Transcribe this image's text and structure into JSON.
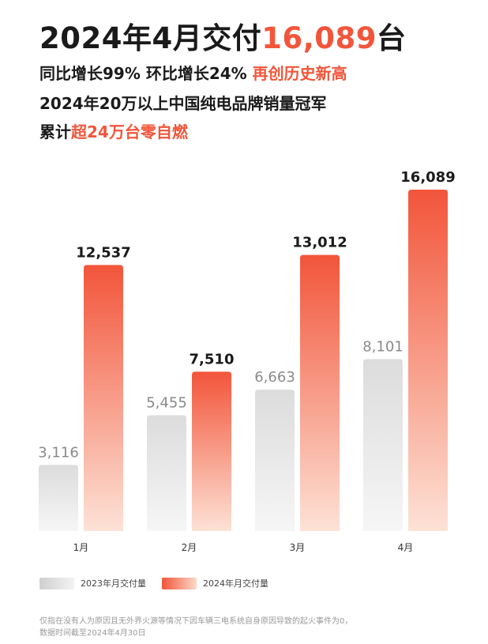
{
  "headline": {
    "prefix": "2024年4月交付",
    "number": "16,089",
    "suffix": "台"
  },
  "subheadlines": [
    {
      "text": "同比增长99% 环比增长24% ",
      "highlight": "再创历史新高"
    },
    {
      "text": "2024年20万以上中国纯电品牌销量冠军",
      "highlight": ""
    },
    {
      "text": "累计",
      "highlight": "超24万台零自燃"
    }
  ],
  "colors": {
    "accent": "#f2553a",
    "bar_2024_top": "#f2553a",
    "bar_2024_bottom": "#fde2d6",
    "bar_2023_top": "#dcdcdc",
    "bar_2023_bottom": "#f6f6f6"
  },
  "chart_data": {
    "type": "bar",
    "categories": [
      "1月",
      "2月",
      "3月",
      "4月"
    ],
    "series": [
      {
        "name": "2023年月交付量",
        "values": [
          3116,
          5455,
          6663,
          8101
        ],
        "labels": [
          "3,116",
          "5,455",
          "6,663",
          "8,101"
        ]
      },
      {
        "name": "2024年月交付量",
        "values": [
          12537,
          7510,
          13012,
          16089
        ],
        "labels": [
          "12,537",
          "7,510",
          "13,012",
          "16,089"
        ]
      }
    ],
    "ylim": [
      0,
      16089
    ],
    "grid": false,
    "legend": "bottom-left"
  },
  "legend": {
    "label_2023": "2023年月交付量",
    "label_2024": "2024年月交付量"
  },
  "footnote": {
    "line1": "仅指在没有人为原因且无外界火源等情况下因车辆三电系统自身原因导致的起火事件为0，",
    "line2": "数据时间截至2024年4月30日"
  }
}
